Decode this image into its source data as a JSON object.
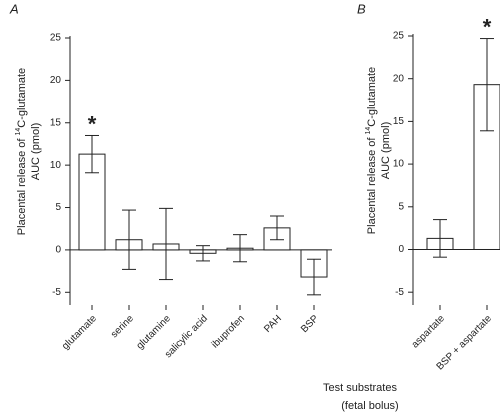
{
  "chart_data": [
    {
      "type": "bar",
      "panel": "A",
      "ylabel": [
        "Placental release of ",
        "14",
        "C-glutamate",
        "AUC (pmol)"
      ],
      "categories": [
        "glutamate",
        "serine",
        "glutamine",
        "salicylic acid",
        "ibuprofen",
        "PAH",
        "BSP"
      ],
      "values": [
        11.3,
        1.2,
        0.7,
        -0.4,
        0.2,
        2.6,
        -3.2
      ],
      "errors": [
        2.2,
        3.5,
        4.2,
        0.9,
        1.6,
        1.4,
        2.1
      ],
      "annotations": [
        {
          "category": 0,
          "text": "*"
        }
      ],
      "color": "#ffffff",
      "ylim": [
        -6.5,
        25
      ],
      "yticks": [
        -5,
        0,
        5,
        10,
        15,
        20,
        25
      ]
    },
    {
      "type": "bar",
      "panel": "B",
      "ylabel": [
        "Placental release of ",
        "14",
        "C-glutamate",
        "AUC (pmol)"
      ],
      "categories": [
        "aspartate",
        "BSP + aspartate"
      ],
      "values": [
        1.3,
        19.3
      ],
      "errors": [
        2.2,
        5.4
      ],
      "annotations": [
        {
          "category": 1,
          "text": "*"
        }
      ],
      "color": "#ffffff",
      "ylim": [
        -6.5,
        25
      ],
      "yticks": [
        -5,
        0,
        5,
        10,
        15,
        20,
        25
      ]
    }
  ],
  "xlabel": [
    "Test substrates",
    "(fetal bolus)"
  ]
}
